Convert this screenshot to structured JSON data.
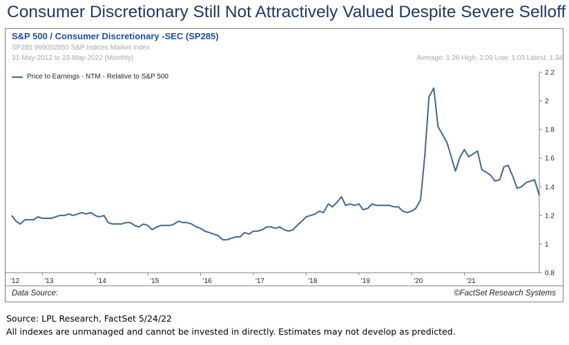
{
  "headline": "Consumer Discretionary Still Not Attractively Valued Despite Severe Selloff",
  "panel": {
    "title": "S&P 500 / Consumer Discretionary -SEC (SP285)",
    "subtitle1": "SP285 999002850 S&P Indices Market index",
    "subtitle2": "31-May-2012 to 23-May-2022 (Monthly)",
    "stats": "Average: 1.26 High: 2.09 Low: 1.03 Latest: 1.34",
    "data_source": "Data Source:",
    "copyright": "©FactSet Research Systems"
  },
  "footer": {
    "source": "Source: LPL Research, FactSet  5/24/22",
    "disclaimer": "All indexes are unmanaged and cannot be invested in directly. Estimates may not develop as predicted."
  },
  "chart_data": {
    "type": "line",
    "colors": {
      "line": "#3f6690",
      "title": "#1f4e9c",
      "headline": "#1f3864"
    },
    "ylim": [
      0.8,
      2.2
    ],
    "yticks": [
      0.8,
      1,
      1.2,
      1.4,
      1.6,
      1.8,
      2,
      2.2
    ],
    "ytick_labels": [
      "0.8",
      "1",
      "1.2",
      "1.4",
      "1.6",
      "1.8",
      "2",
      "2.2"
    ],
    "xlim": [
      2012.42,
      2022.42
    ],
    "xticks": [
      2012.0,
      2013.0,
      2014.0,
      2015.0,
      2016.0,
      2017.0,
      2018.0,
      2019.0,
      2020.0,
      2021.0
    ],
    "xtick_labels": [
      "'12",
      "'13",
      "'14",
      "'15",
      "'16",
      "'17",
      "'18",
      "'19",
      "'20",
      "'21"
    ],
    "grid": false,
    "legend_position": "top-left",
    "series": [
      {
        "name": "Price to Earnings - NTM - Relative to S&P 500",
        "x": [
          2012.42,
          2012.5,
          2012.58,
          2012.67,
          2012.75,
          2012.83,
          2012.92,
          2013.0,
          2013.08,
          2013.17,
          2013.25,
          2013.33,
          2013.42,
          2013.5,
          2013.58,
          2013.67,
          2013.75,
          2013.83,
          2013.92,
          2014.0,
          2014.08,
          2014.17,
          2014.25,
          2014.33,
          2014.42,
          2014.5,
          2014.58,
          2014.67,
          2014.75,
          2014.83,
          2014.92,
          2015.0,
          2015.08,
          2015.17,
          2015.25,
          2015.33,
          2015.42,
          2015.5,
          2015.58,
          2015.67,
          2015.75,
          2015.83,
          2015.92,
          2016.0,
          2016.08,
          2016.17,
          2016.25,
          2016.33,
          2016.42,
          2016.5,
          2016.58,
          2016.67,
          2016.75,
          2016.83,
          2016.92,
          2017.0,
          2017.08,
          2017.17,
          2017.25,
          2017.33,
          2017.42,
          2017.5,
          2017.58,
          2017.67,
          2017.75,
          2017.83,
          2017.92,
          2018.0,
          2018.08,
          2018.17,
          2018.25,
          2018.33,
          2018.42,
          2018.5,
          2018.58,
          2018.67,
          2018.75,
          2018.83,
          2018.92,
          2019.0,
          2019.08,
          2019.17,
          2019.25,
          2019.33,
          2019.42,
          2019.5,
          2019.58,
          2019.67,
          2019.75,
          2019.83,
          2019.92,
          2020.0,
          2020.08,
          2020.17,
          2020.25,
          2020.33,
          2020.42,
          2020.5,
          2020.58,
          2020.67,
          2020.75,
          2020.83,
          2020.92,
          2021.0,
          2021.08,
          2021.17,
          2021.25,
          2021.33,
          2021.42,
          2021.5,
          2021.58,
          2021.67,
          2021.75,
          2021.83,
          2021.92,
          2022.0,
          2022.08,
          2022.17,
          2022.25,
          2022.33,
          2022.42
        ],
        "y": [
          1.2,
          1.16,
          1.14,
          1.17,
          1.17,
          1.17,
          1.19,
          1.18,
          1.18,
          1.18,
          1.19,
          1.2,
          1.2,
          1.21,
          1.2,
          1.21,
          1.22,
          1.21,
          1.22,
          1.2,
          1.19,
          1.2,
          1.15,
          1.14,
          1.14,
          1.14,
          1.15,
          1.15,
          1.13,
          1.12,
          1.14,
          1.13,
          1.1,
          1.12,
          1.13,
          1.13,
          1.13,
          1.14,
          1.16,
          1.15,
          1.15,
          1.14,
          1.12,
          1.11,
          1.09,
          1.08,
          1.07,
          1.06,
          1.03,
          1.03,
          1.04,
          1.05,
          1.05,
          1.08,
          1.07,
          1.09,
          1.09,
          1.1,
          1.12,
          1.12,
          1.11,
          1.12,
          1.1,
          1.09,
          1.1,
          1.13,
          1.16,
          1.19,
          1.2,
          1.21,
          1.23,
          1.22,
          1.28,
          1.26,
          1.29,
          1.33,
          1.27,
          1.28,
          1.27,
          1.28,
          1.24,
          1.25,
          1.28,
          1.27,
          1.27,
          1.27,
          1.27,
          1.26,
          1.26,
          1.23,
          1.22,
          1.23,
          1.25,
          1.31,
          1.62,
          2.03,
          2.09,
          1.82,
          1.77,
          1.71,
          1.61,
          1.51,
          1.61,
          1.66,
          1.61,
          1.63,
          1.65,
          1.52,
          1.5,
          1.48,
          1.44,
          1.45,
          1.54,
          1.55,
          1.47,
          1.39,
          1.4,
          1.43,
          1.44,
          1.45,
          1.34
        ]
      }
    ]
  }
}
